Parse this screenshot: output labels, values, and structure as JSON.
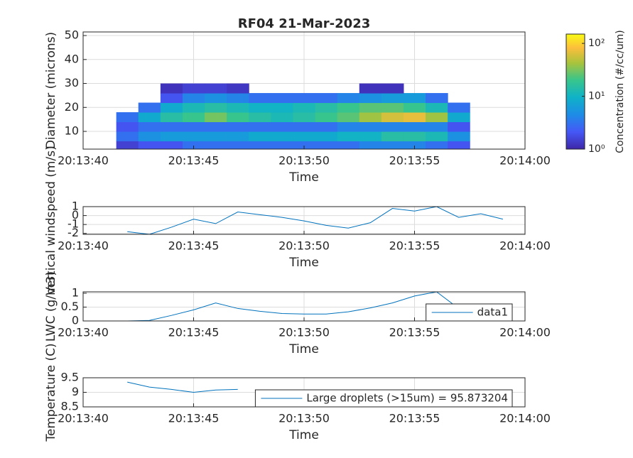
{
  "chart_data": [
    {
      "type": "contour",
      "title": "RF04 21-Mar-2023",
      "xlabel": "Time",
      "ylabel": "Diameter (microns)",
      "x": [
        "20:13:42",
        "20:13:43",
        "20:13:44",
        "20:13:45",
        "20:13:46",
        "20:13:47",
        "20:13:48",
        "20:13:49",
        "20:13:50",
        "20:13:51",
        "20:13:52",
        "20:13:53",
        "20:13:54",
        "20:13:55",
        "20:13:56",
        "20:13:57"
      ],
      "y": [
        4,
        8,
        12,
        16,
        20,
        24,
        28
      ],
      "z": [
        [
          1.5,
          2,
          2,
          3,
          3,
          3,
          3,
          3,
          3,
          3,
          3,
          4,
          4,
          4,
          3,
          2
        ],
        [
          3,
          5,
          6,
          6,
          6,
          6,
          8,
          8,
          8,
          8,
          10,
          10,
          15,
          15,
          12,
          5
        ],
        [
          2,
          3,
          3,
          3,
          3,
          3,
          3,
          3,
          3,
          3,
          4,
          4,
          4,
          4,
          4,
          2
        ],
        [
          3,
          8,
          15,
          20,
          30,
          20,
          15,
          12,
          15,
          20,
          25,
          40,
          60,
          70,
          40,
          8
        ],
        [
          null,
          3,
          8,
          12,
          15,
          12,
          10,
          10,
          12,
          15,
          20,
          25,
          25,
          20,
          12,
          3
        ],
        [
          null,
          null,
          2,
          4,
          5,
          4,
          3,
          3,
          3,
          3,
          4,
          5,
          6,
          6,
          3,
          null
        ],
        [
          null,
          null,
          1.2,
          1.5,
          1.5,
          1.3,
          null,
          null,
          null,
          null,
          null,
          1.2,
          1.2,
          null,
          null,
          null
        ]
      ],
      "xlim": [
        "20:13:40",
        "20:14:00"
      ],
      "xticks": [
        "20:13:40",
        "20:13:45",
        "20:13:50",
        "20:13:55",
        "20:14:00"
      ],
      "ylim": [
        2.6,
        51.5
      ],
      "yticks": [
        10,
        20,
        30,
        40,
        50
      ],
      "grid": true,
      "colorbar": {
        "label": "Concentration (#/cc/um)",
        "clim": [
          1,
          150
        ],
        "scale": "log",
        "colormap": "parula",
        "ticks": [
          {
            "value": 1,
            "label": "10⁰"
          },
          {
            "value": 10,
            "label": "10¹"
          },
          {
            "value": 100,
            "label": "10²"
          }
        ]
      }
    },
    {
      "type": "line",
      "xlabel": "Time",
      "ylabel": "Vertical windspeed (m/s)",
      "x": [
        "20:13:42",
        "20:13:43",
        "20:13:44",
        "20:13:45",
        "20:13:46",
        "20:13:47",
        "20:13:48",
        "20:13:49",
        "20:13:50",
        "20:13:51",
        "20:13:52",
        "20:13:53",
        "20:13:54",
        "20:13:55",
        "20:13:56",
        "20:13:57",
        "20:13:58",
        "20:13:59"
      ],
      "series": [
        {
          "color": "#0072bd",
          "values": [
            -1.8,
            -2.1,
            -1.3,
            -0.4,
            -0.9,
            0.4,
            0.1,
            -0.2,
            -0.6,
            -1.1,
            -1.4,
            -0.8,
            0.8,
            0.5,
            1.0,
            -0.2,
            0.2,
            -0.4
          ]
        }
      ],
      "xlim": [
        "20:13:40",
        "20:14:00"
      ],
      "xticks": [
        "20:13:40",
        "20:13:45",
        "20:13:50",
        "20:13:55",
        "20:14:00"
      ],
      "ylim": [
        -2.1,
        1
      ],
      "yticks": [
        -2,
        -1,
        0,
        1
      ],
      "grid": true
    },
    {
      "type": "line",
      "xlabel": "Time",
      "ylabel": "LWC (g/m3)",
      "x": [
        "20:13:42",
        "20:13:43",
        "20:13:44",
        "20:13:45",
        "20:13:46",
        "20:13:47",
        "20:13:48",
        "20:13:49",
        "20:13:50",
        "20:13:51",
        "20:13:52",
        "20:13:53",
        "20:13:54",
        "20:13:55",
        "20:13:56",
        "20:13:57"
      ],
      "series": [
        {
          "name": "data1",
          "color": "#0072bd",
          "values": [
            0,
            0.02,
            0.2,
            0.4,
            0.65,
            0.45,
            0.35,
            0.27,
            0.25,
            0.25,
            0.33,
            0.47,
            0.65,
            0.9,
            1.05,
            0.45
          ]
        }
      ],
      "xlim": [
        "20:13:40",
        "20:14:00"
      ],
      "xticks": [
        "20:13:40",
        "20:13:45",
        "20:13:50",
        "20:13:55",
        "20:14:00"
      ],
      "ylim": [
        0,
        1.05
      ],
      "yticks": [
        0,
        0.5,
        1
      ],
      "grid": true,
      "legend": "southeast"
    },
    {
      "type": "line",
      "xlabel": "Time",
      "ylabel": "Temperature (C)",
      "x": [
        "20:13:42",
        "20:13:43",
        "20:13:44",
        "20:13:45",
        "20:13:46",
        "20:13:47"
      ],
      "series": [
        {
          "name": "Large droplets (>15um) = 95.873204",
          "color": "#0072bd",
          "values": [
            9.35,
            9.18,
            9.1,
            9.0,
            9.08,
            9.1
          ]
        }
      ],
      "xlim": [
        "20:13:40",
        "20:14:00"
      ],
      "xticks": [
        "20:13:40",
        "20:13:45",
        "20:13:50",
        "20:13:55",
        "20:14:00"
      ],
      "ylim": [
        8.5,
        9.5
      ],
      "yticks": [
        8.5,
        9,
        9.5
      ],
      "grid": true,
      "legend": "southeast"
    }
  ]
}
